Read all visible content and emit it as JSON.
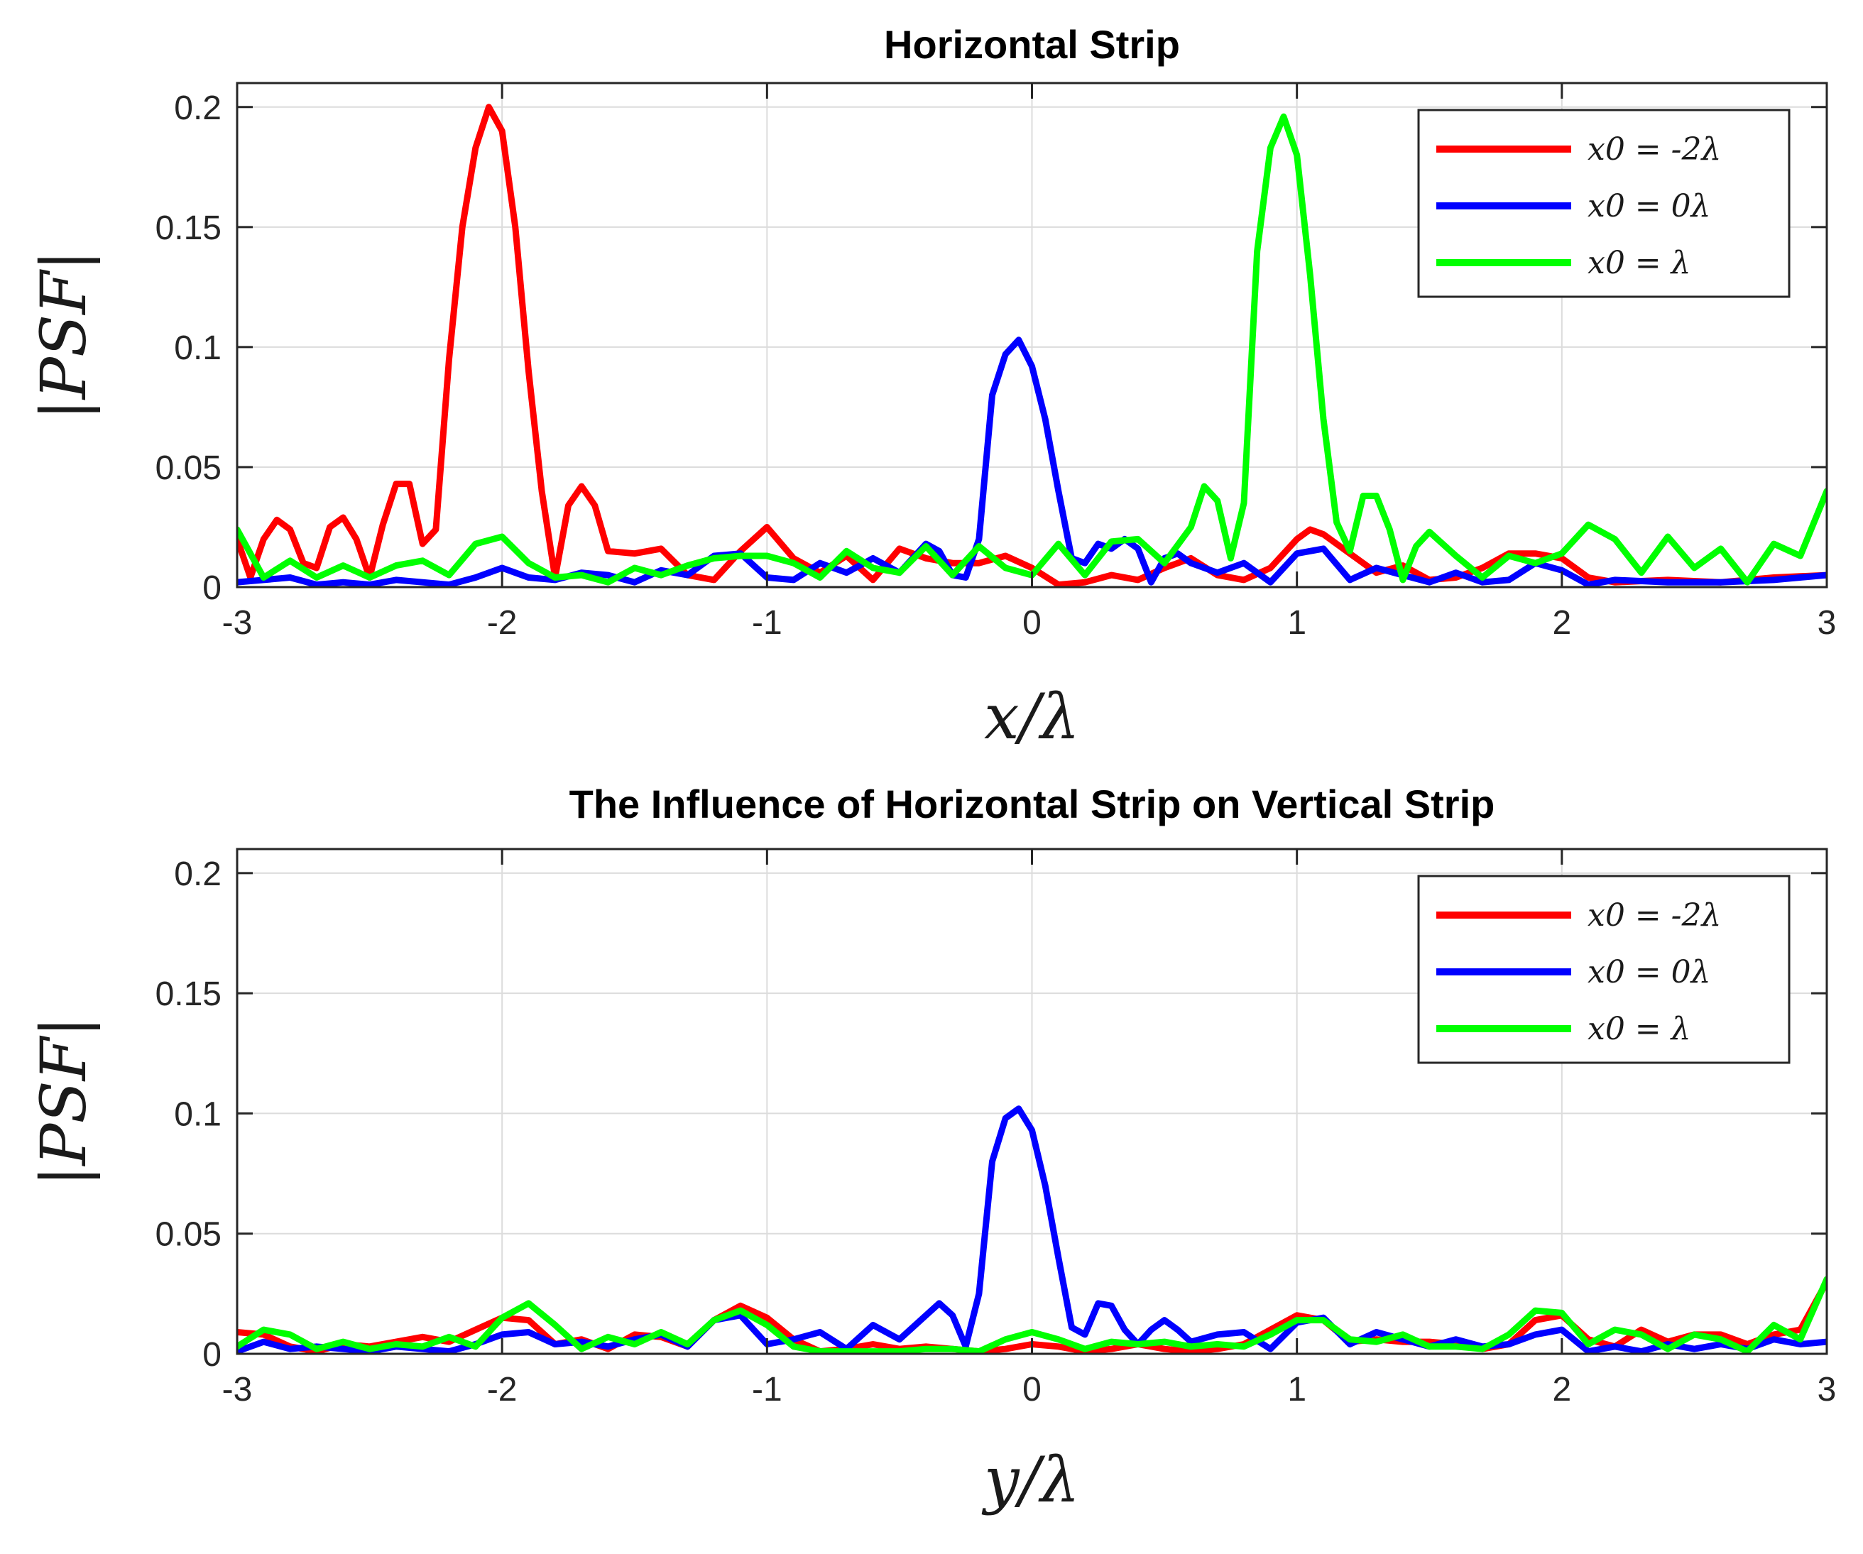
{
  "chart_data": [
    {
      "type": "line",
      "title": "Horizontal Strip",
      "xlabel": "x/λ",
      "ylabel": "|PSF|",
      "xlim": [
        -3,
        3
      ],
      "ylim": [
        0,
        0.21
      ],
      "xticks": [
        -3,
        -2,
        -1,
        0,
        1,
        2,
        3
      ],
      "xtick_labels": [
        "-3",
        "-2",
        "-1",
        "0",
        "1",
        "2",
        "3"
      ],
      "yticks": [
        0,
        0.05,
        0.1,
        0.15,
        0.2
      ],
      "ytick_labels": [
        "0",
        "0.05",
        "0.1",
        "0.15",
        "0.2"
      ],
      "grid": true,
      "legend_position": "top-right",
      "series": [
        {
          "name": "x0 = -2λ",
          "color": "#ff0000",
          "x": [
            -3.0,
            -2.95,
            -2.9,
            -2.85,
            -2.8,
            -2.75,
            -2.7,
            -2.65,
            -2.6,
            -2.55,
            -2.5,
            -2.45,
            -2.4,
            -2.35,
            -2.3,
            -2.25,
            -2.2,
            -2.15,
            -2.1,
            -2.05,
            -2.0,
            -1.95,
            -1.9,
            -1.85,
            -1.8,
            -1.75,
            -1.7,
            -1.65,
            -1.6,
            -1.5,
            -1.4,
            -1.3,
            -1.2,
            -1.1,
            -1.0,
            -0.9,
            -0.8,
            -0.7,
            -0.6,
            -0.5,
            -0.4,
            -0.3,
            -0.2,
            -0.1,
            0.0,
            0.1,
            0.2,
            0.3,
            0.4,
            0.5,
            0.6,
            0.7,
            0.8,
            0.9,
            1.0,
            1.05,
            1.1,
            1.2,
            1.3,
            1.4,
            1.5,
            1.6,
            1.7,
            1.8,
            1.9,
            2.0,
            2.1,
            2.2,
            2.4,
            2.6,
            2.8,
            3.0
          ],
          "values": [
            0.02,
            0.004,
            0.02,
            0.028,
            0.024,
            0.01,
            0.008,
            0.025,
            0.029,
            0.02,
            0.004,
            0.026,
            0.043,
            0.043,
            0.018,
            0.024,
            0.095,
            0.15,
            0.183,
            0.2,
            0.19,
            0.15,
            0.09,
            0.04,
            0.004,
            0.034,
            0.042,
            0.034,
            0.015,
            0.014,
            0.016,
            0.005,
            0.003,
            0.015,
            0.025,
            0.012,
            0.006,
            0.013,
            0.003,
            0.016,
            0.012,
            0.01,
            0.01,
            0.013,
            0.008,
            0.001,
            0.002,
            0.005,
            0.003,
            0.008,
            0.012,
            0.005,
            0.003,
            0.008,
            0.02,
            0.024,
            0.022,
            0.014,
            0.006,
            0.009,
            0.003,
            0.004,
            0.008,
            0.014,
            0.014,
            0.012,
            0.004,
            0.002,
            0.003,
            0.002,
            0.004,
            0.005
          ]
        },
        {
          "name": "x0 = 0λ",
          "color": "#0000ff",
          "x": [
            -3.0,
            -2.9,
            -2.8,
            -2.7,
            -2.6,
            -2.5,
            -2.4,
            -2.3,
            -2.2,
            -2.1,
            -2.0,
            -1.9,
            -1.8,
            -1.7,
            -1.6,
            -1.5,
            -1.4,
            -1.3,
            -1.2,
            -1.1,
            -1.0,
            -0.9,
            -0.8,
            -0.7,
            -0.6,
            -0.5,
            -0.4,
            -0.35,
            -0.3,
            -0.25,
            -0.2,
            -0.15,
            -0.1,
            -0.05,
            0.0,
            0.05,
            0.1,
            0.15,
            0.2,
            0.25,
            0.3,
            0.35,
            0.4,
            0.45,
            0.5,
            0.55,
            0.6,
            0.7,
            0.8,
            0.9,
            1.0,
            1.1,
            1.2,
            1.3,
            1.4,
            1.5,
            1.6,
            1.7,
            1.8,
            1.9,
            2.0,
            2.1,
            2.2,
            2.4,
            2.6,
            2.8,
            3.0
          ],
          "values": [
            0.002,
            0.003,
            0.004,
            0.001,
            0.002,
            0.001,
            0.003,
            0.002,
            0.001,
            0.004,
            0.008,
            0.004,
            0.003,
            0.006,
            0.005,
            0.002,
            0.007,
            0.005,
            0.013,
            0.014,
            0.004,
            0.003,
            0.01,
            0.006,
            0.012,
            0.006,
            0.018,
            0.015,
            0.005,
            0.004,
            0.02,
            0.08,
            0.097,
            0.103,
            0.092,
            0.07,
            0.04,
            0.012,
            0.01,
            0.018,
            0.016,
            0.02,
            0.016,
            0.002,
            0.012,
            0.014,
            0.01,
            0.006,
            0.01,
            0.002,
            0.014,
            0.016,
            0.003,
            0.008,
            0.005,
            0.002,
            0.006,
            0.002,
            0.003,
            0.01,
            0.007,
            0.001,
            0.003,
            0.002,
            0.002,
            0.003,
            0.005
          ]
        },
        {
          "name": "x0 = λ",
          "color": "#00ff00",
          "x": [
            -3.0,
            -2.9,
            -2.8,
            -2.7,
            -2.6,
            -2.5,
            -2.4,
            -2.3,
            -2.2,
            -2.1,
            -2.0,
            -1.9,
            -1.8,
            -1.7,
            -1.6,
            -1.5,
            -1.4,
            -1.3,
            -1.2,
            -1.1,
            -1.0,
            -0.9,
            -0.8,
            -0.7,
            -0.6,
            -0.5,
            -0.4,
            -0.3,
            -0.2,
            -0.1,
            0.0,
            0.1,
            0.2,
            0.3,
            0.4,
            0.5,
            0.6,
            0.65,
            0.7,
            0.75,
            0.8,
            0.85,
            0.9,
            0.95,
            1.0,
            1.05,
            1.1,
            1.15,
            1.2,
            1.25,
            1.3,
            1.35,
            1.4,
            1.45,
            1.5,
            1.6,
            1.7,
            1.8,
            1.9,
            2.0,
            2.1,
            2.2,
            2.3,
            2.4,
            2.5,
            2.6,
            2.7,
            2.8,
            2.9,
            3.0
          ],
          "values": [
            0.024,
            0.004,
            0.011,
            0.004,
            0.009,
            0.004,
            0.009,
            0.011,
            0.005,
            0.018,
            0.021,
            0.01,
            0.004,
            0.005,
            0.002,
            0.008,
            0.005,
            0.009,
            0.012,
            0.013,
            0.013,
            0.01,
            0.004,
            0.015,
            0.008,
            0.006,
            0.017,
            0.005,
            0.017,
            0.008,
            0.005,
            0.018,
            0.005,
            0.019,
            0.02,
            0.01,
            0.025,
            0.042,
            0.036,
            0.012,
            0.035,
            0.14,
            0.183,
            0.196,
            0.18,
            0.13,
            0.07,
            0.027,
            0.015,
            0.038,
            0.038,
            0.024,
            0.003,
            0.017,
            0.023,
            0.013,
            0.004,
            0.013,
            0.01,
            0.014,
            0.026,
            0.02,
            0.006,
            0.021,
            0.008,
            0.016,
            0.002,
            0.018,
            0.013,
            0.04
          ]
        }
      ]
    },
    {
      "type": "line",
      "title": "The Influence of Horizontal Strip on Vertical Strip",
      "xlabel": "y/λ",
      "ylabel": "|PSF|",
      "xlim": [
        -3,
        3
      ],
      "ylim": [
        0,
        0.21
      ],
      "xticks": [
        -3,
        -2,
        -1,
        0,
        1,
        2,
        3
      ],
      "xtick_labels": [
        "-3",
        "-2",
        "-1",
        "0",
        "1",
        "2",
        "3"
      ],
      "yticks": [
        0,
        0.05,
        0.1,
        0.15,
        0.2
      ],
      "ytick_labels": [
        "0",
        "0.05",
        "0.1",
        "0.15",
        "0.2"
      ],
      "grid": true,
      "legend_position": "top-right",
      "series": [
        {
          "name": "x0 = -2λ",
          "color": "#ff0000",
          "x": [
            -3.0,
            -2.9,
            -2.8,
            -2.7,
            -2.6,
            -2.5,
            -2.4,
            -2.3,
            -2.2,
            -2.1,
            -2.0,
            -1.9,
            -1.8,
            -1.7,
            -1.6,
            -1.5,
            -1.4,
            -1.3,
            -1.2,
            -1.1,
            -1.0,
            -0.9,
            -0.8,
            -0.7,
            -0.6,
            -0.5,
            -0.4,
            -0.3,
            -0.2,
            -0.1,
            0.0,
            0.1,
            0.2,
            0.3,
            0.4,
            0.5,
            0.6,
            0.7,
            0.8,
            0.9,
            1.0,
            1.1,
            1.2,
            1.3,
            1.4,
            1.5,
            1.6,
            1.7,
            1.8,
            1.9,
            2.0,
            2.1,
            2.2,
            2.3,
            2.4,
            2.5,
            2.6,
            2.7,
            2.8,
            2.9,
            3.0
          ],
          "values": [
            0.009,
            0.008,
            0.003,
            0.001,
            0.004,
            0.003,
            0.005,
            0.007,
            0.005,
            0.01,
            0.015,
            0.014,
            0.004,
            0.006,
            0.002,
            0.008,
            0.007,
            0.003,
            0.014,
            0.02,
            0.015,
            0.006,
            0.001,
            0.002,
            0.004,
            0.002,
            0.003,
            0.002,
            0.001,
            0.002,
            0.004,
            0.003,
            0.001,
            0.002,
            0.004,
            0.002,
            0.001,
            0.002,
            0.004,
            0.01,
            0.016,
            0.014,
            0.005,
            0.006,
            0.005,
            0.005,
            0.004,
            0.002,
            0.004,
            0.014,
            0.016,
            0.006,
            0.003,
            0.01,
            0.005,
            0.008,
            0.008,
            0.004,
            0.008,
            0.01,
            0.03
          ]
        },
        {
          "name": "x0 = 0λ",
          "color": "#0000ff",
          "x": [
            -3.0,
            -2.9,
            -2.8,
            -2.7,
            -2.6,
            -2.5,
            -2.4,
            -2.3,
            -2.2,
            -2.1,
            -2.0,
            -1.9,
            -1.8,
            -1.7,
            -1.6,
            -1.5,
            -1.4,
            -1.3,
            -1.2,
            -1.1,
            -1.0,
            -0.9,
            -0.8,
            -0.7,
            -0.6,
            -0.5,
            -0.4,
            -0.35,
            -0.3,
            -0.25,
            -0.2,
            -0.15,
            -0.1,
            -0.05,
            0.0,
            0.05,
            0.1,
            0.15,
            0.2,
            0.25,
            0.3,
            0.35,
            0.4,
            0.45,
            0.5,
            0.55,
            0.6,
            0.7,
            0.8,
            0.9,
            1.0,
            1.1,
            1.2,
            1.3,
            1.4,
            1.5,
            1.6,
            1.7,
            1.8,
            1.9,
            2.0,
            2.1,
            2.2,
            2.3,
            2.4,
            2.5,
            2.6,
            2.7,
            2.8,
            2.9,
            3.0
          ],
          "values": [
            0.001,
            0.005,
            0.002,
            0.003,
            0.002,
            0.001,
            0.003,
            0.002,
            0.001,
            0.004,
            0.008,
            0.009,
            0.004,
            0.005,
            0.003,
            0.006,
            0.008,
            0.003,
            0.014,
            0.016,
            0.004,
            0.006,
            0.009,
            0.002,
            0.012,
            0.006,
            0.016,
            0.021,
            0.016,
            0.003,
            0.025,
            0.08,
            0.098,
            0.102,
            0.093,
            0.07,
            0.04,
            0.011,
            0.008,
            0.021,
            0.02,
            0.01,
            0.004,
            0.01,
            0.014,
            0.01,
            0.005,
            0.008,
            0.009,
            0.002,
            0.013,
            0.015,
            0.004,
            0.009,
            0.006,
            0.003,
            0.006,
            0.003,
            0.004,
            0.008,
            0.01,
            0.001,
            0.003,
            0.001,
            0.004,
            0.002,
            0.004,
            0.002,
            0.006,
            0.004,
            0.005
          ]
        },
        {
          "name": "x0 = λ",
          "color": "#00ff00",
          "x": [
            -3.0,
            -2.9,
            -2.8,
            -2.7,
            -2.6,
            -2.5,
            -2.4,
            -2.3,
            -2.2,
            -2.1,
            -2.0,
            -1.9,
            -1.8,
            -1.7,
            -1.6,
            -1.5,
            -1.4,
            -1.3,
            -1.2,
            -1.1,
            -1.0,
            -0.9,
            -0.8,
            -0.7,
            -0.6,
            -0.5,
            -0.4,
            -0.3,
            -0.2,
            -0.1,
            0.0,
            0.1,
            0.2,
            0.3,
            0.4,
            0.5,
            0.6,
            0.7,
            0.8,
            0.9,
            1.0,
            1.1,
            1.2,
            1.3,
            1.4,
            1.5,
            1.6,
            1.7,
            1.8,
            1.9,
            2.0,
            2.1,
            2.2,
            2.3,
            2.4,
            2.5,
            2.6,
            2.7,
            2.8,
            2.9,
            3.0
          ],
          "values": [
            0.003,
            0.01,
            0.008,
            0.002,
            0.005,
            0.002,
            0.004,
            0.003,
            0.007,
            0.003,
            0.015,
            0.021,
            0.012,
            0.002,
            0.007,
            0.004,
            0.009,
            0.004,
            0.014,
            0.018,
            0.012,
            0.003,
            0.001,
            0.001,
            0.001,
            0.001,
            0.002,
            0.002,
            0.001,
            0.006,
            0.009,
            0.006,
            0.002,
            0.005,
            0.004,
            0.005,
            0.003,
            0.004,
            0.003,
            0.008,
            0.014,
            0.014,
            0.006,
            0.005,
            0.008,
            0.003,
            0.003,
            0.002,
            0.008,
            0.018,
            0.017,
            0.004,
            0.01,
            0.008,
            0.002,
            0.008,
            0.006,
            0.001,
            0.012,
            0.006,
            0.031
          ]
        }
      ]
    }
  ]
}
